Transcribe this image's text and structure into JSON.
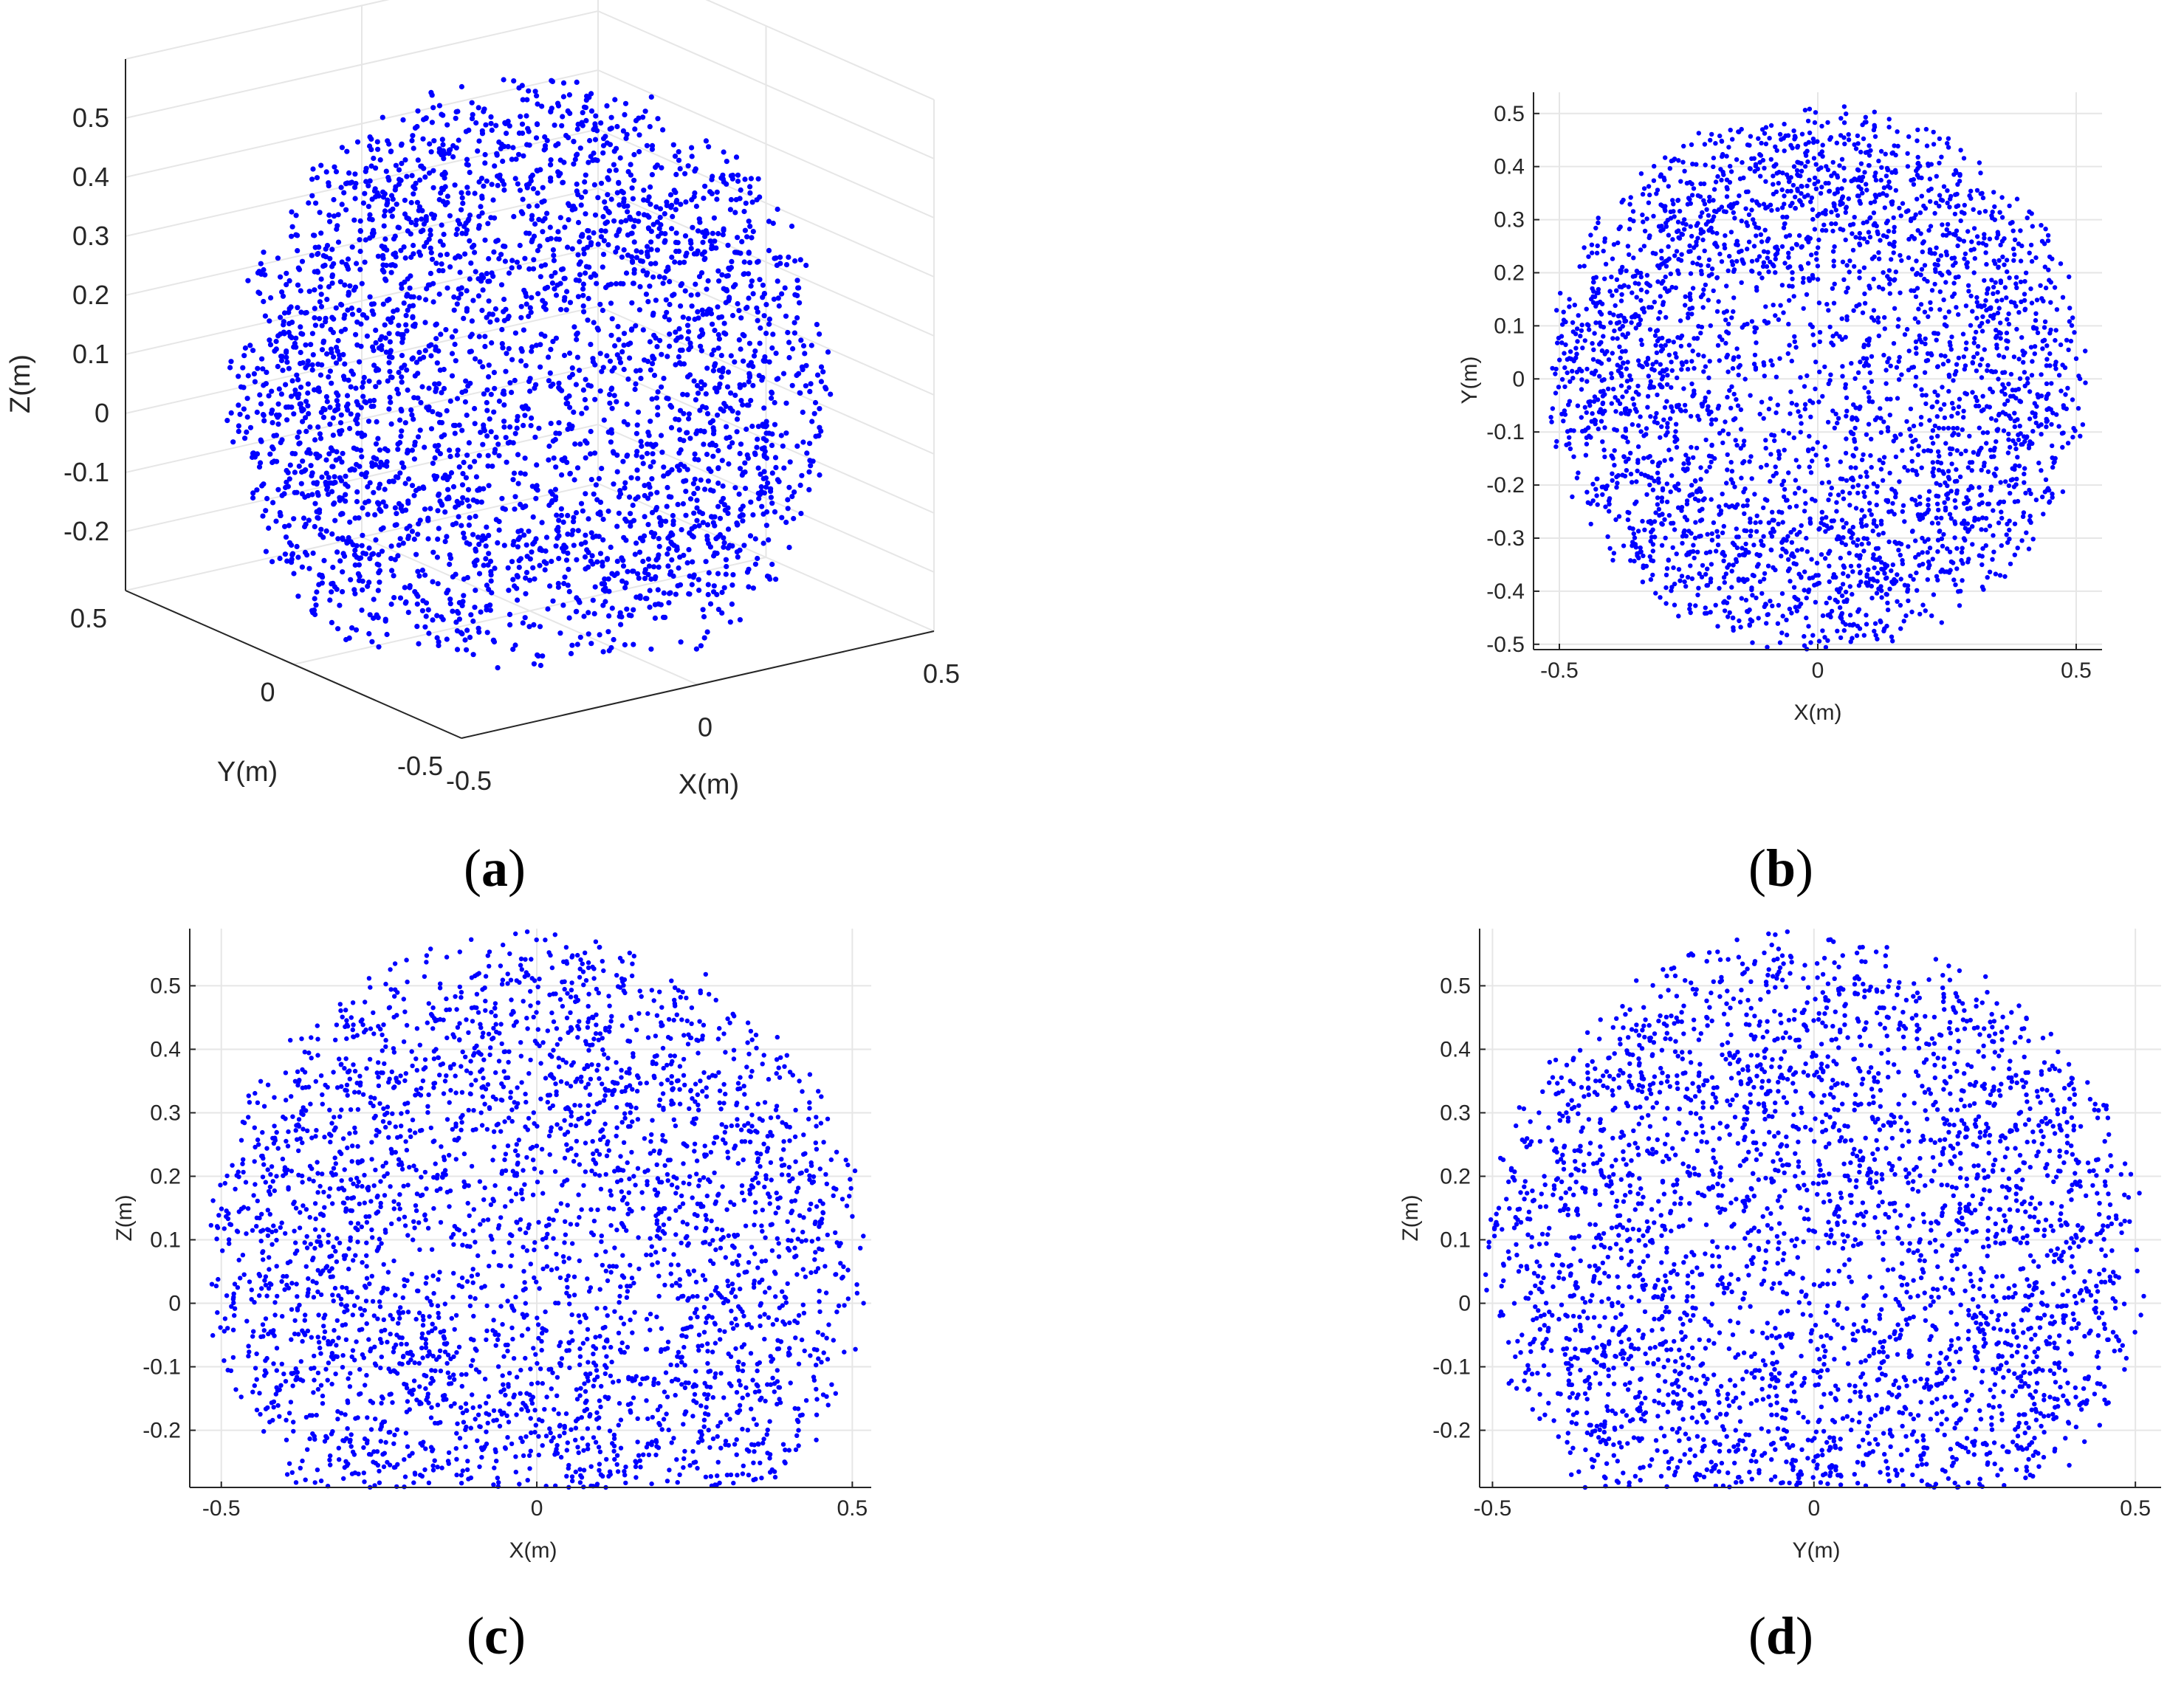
{
  "chart_data": [
    {
      "panel": "a",
      "caption_letter": "a",
      "type": "scatter",
      "projection": "3d",
      "xlabel": "X(m)",
      "ylabel": "Y(m)",
      "zlabel": "Z(m)",
      "xlim": [
        -0.5,
        0.5
      ],
      "ylim": [
        -0.5,
        0.5
      ],
      "zlim": [
        -0.3,
        0.6
      ],
      "xticks": [
        {
          "value": -0.5,
          "label": "-0.5"
        },
        {
          "value": 0,
          "label": "0"
        },
        {
          "value": 0.5,
          "label": "0.5"
        }
      ],
      "yticks": [
        {
          "value": -0.5,
          "label": "-0.5"
        },
        {
          "value": 0,
          "label": "0"
        },
        {
          "value": 0.5,
          "label": "0.5"
        }
      ],
      "zticks": [
        {
          "value": -0.2,
          "label": "-0.2"
        },
        {
          "value": -0.1,
          "label": "-0.1"
        },
        {
          "value": 0,
          "label": "0"
        },
        {
          "value": 0.1,
          "label": "0.1"
        },
        {
          "value": 0.2,
          "label": "0.2"
        },
        {
          "value": 0.3,
          "label": "0.3"
        },
        {
          "value": 0.4,
          "label": "0.4"
        },
        {
          "value": 0.5,
          "label": "0.5"
        }
      ],
      "grid": true,
      "marker_color": "#0000ff",
      "cloud": {
        "x_range": [
          -0.52,
          0.52
        ],
        "y_range": [
          -0.52,
          0.52
        ],
        "z_range": [
          -0.3,
          0.58
        ],
        "point_count": 2600
      }
    },
    {
      "panel": "b",
      "caption_letter": "b",
      "type": "scatter",
      "view": "top (X-Y)",
      "xlabel": "X(m)",
      "ylabel": "Y(m)",
      "xlim": [
        -0.55,
        0.55
      ],
      "ylim": [
        -0.51,
        0.54
      ],
      "xticks": [
        {
          "value": -0.5,
          "label": "-0.5"
        },
        {
          "value": 0,
          "label": "0"
        },
        {
          "value": 0.5,
          "label": "0.5"
        }
      ],
      "yticks": [
        {
          "value": -0.5,
          "label": "-0.5"
        },
        {
          "value": -0.4,
          "label": "-0.4"
        },
        {
          "value": -0.3,
          "label": "-0.3"
        },
        {
          "value": -0.2,
          "label": "-0.2"
        },
        {
          "value": -0.1,
          "label": "-0.1"
        },
        {
          "value": 0,
          "label": "0"
        },
        {
          "value": 0.1,
          "label": "0.1"
        },
        {
          "value": 0.2,
          "label": "0.2"
        },
        {
          "value": 0.3,
          "label": "0.3"
        },
        {
          "value": 0.4,
          "label": "0.4"
        },
        {
          "value": 0.5,
          "label": "0.5"
        }
      ],
      "grid": true,
      "marker_color": "#0000ff",
      "cloud": {
        "x_range": [
          -0.54,
          0.54
        ],
        "y_range": [
          -0.51,
          0.53
        ],
        "point_count": 2400
      }
    },
    {
      "panel": "c",
      "caption_letter": "c",
      "type": "scatter",
      "view": "front (X-Z)",
      "xlabel": "X(m)",
      "ylabel": "Z(m)",
      "xlim": [
        -0.55,
        0.53
      ],
      "ylim": [
        -0.29,
        0.59
      ],
      "xticks": [
        {
          "value": -0.5,
          "label": "-0.5"
        },
        {
          "value": 0,
          "label": "0"
        },
        {
          "value": 0.5,
          "label": "0.5"
        }
      ],
      "yticks": [
        {
          "value": -0.2,
          "label": "-0.2"
        },
        {
          "value": -0.1,
          "label": "-0.1"
        },
        {
          "value": 0,
          "label": "0"
        },
        {
          "value": 0.1,
          "label": "0.1"
        },
        {
          "value": 0.2,
          "label": "0.2"
        },
        {
          "value": 0.3,
          "label": "0.3"
        },
        {
          "value": 0.4,
          "label": "0.4"
        },
        {
          "value": 0.5,
          "label": "0.5"
        }
      ],
      "grid": true,
      "marker_color": "#0000ff",
      "cloud": {
        "x_range": [
          -0.54,
          0.52
        ],
        "z_range": [
          -0.28,
          0.59
        ],
        "point_count": 2400
      }
    },
    {
      "panel": "d",
      "caption_letter": "d",
      "type": "scatter",
      "view": "side (Y-Z)",
      "xlabel": "Y(m)",
      "ylabel": "Z(m)",
      "xlim": [
        -0.52,
        0.54
      ],
      "ylim": [
        -0.29,
        0.59
      ],
      "xticks": [
        {
          "value": -0.5,
          "label": "-0.5"
        },
        {
          "value": 0,
          "label": "0"
        },
        {
          "value": 0.5,
          "label": "0.5"
        }
      ],
      "yticks": [
        {
          "value": -0.2,
          "label": "-0.2"
        },
        {
          "value": -0.1,
          "label": "-0.1"
        },
        {
          "value": 0,
          "label": "0"
        },
        {
          "value": 0.1,
          "label": "0.1"
        },
        {
          "value": 0.2,
          "label": "0.2"
        },
        {
          "value": 0.3,
          "label": "0.3"
        },
        {
          "value": 0.4,
          "label": "0.4"
        },
        {
          "value": 0.5,
          "label": "0.5"
        }
      ],
      "grid": true,
      "marker_color": "#0000ff",
      "cloud": {
        "y_range": [
          -0.52,
          0.54
        ],
        "z_range": [
          -0.28,
          0.59
        ],
        "point_count": 2400
      }
    }
  ]
}
